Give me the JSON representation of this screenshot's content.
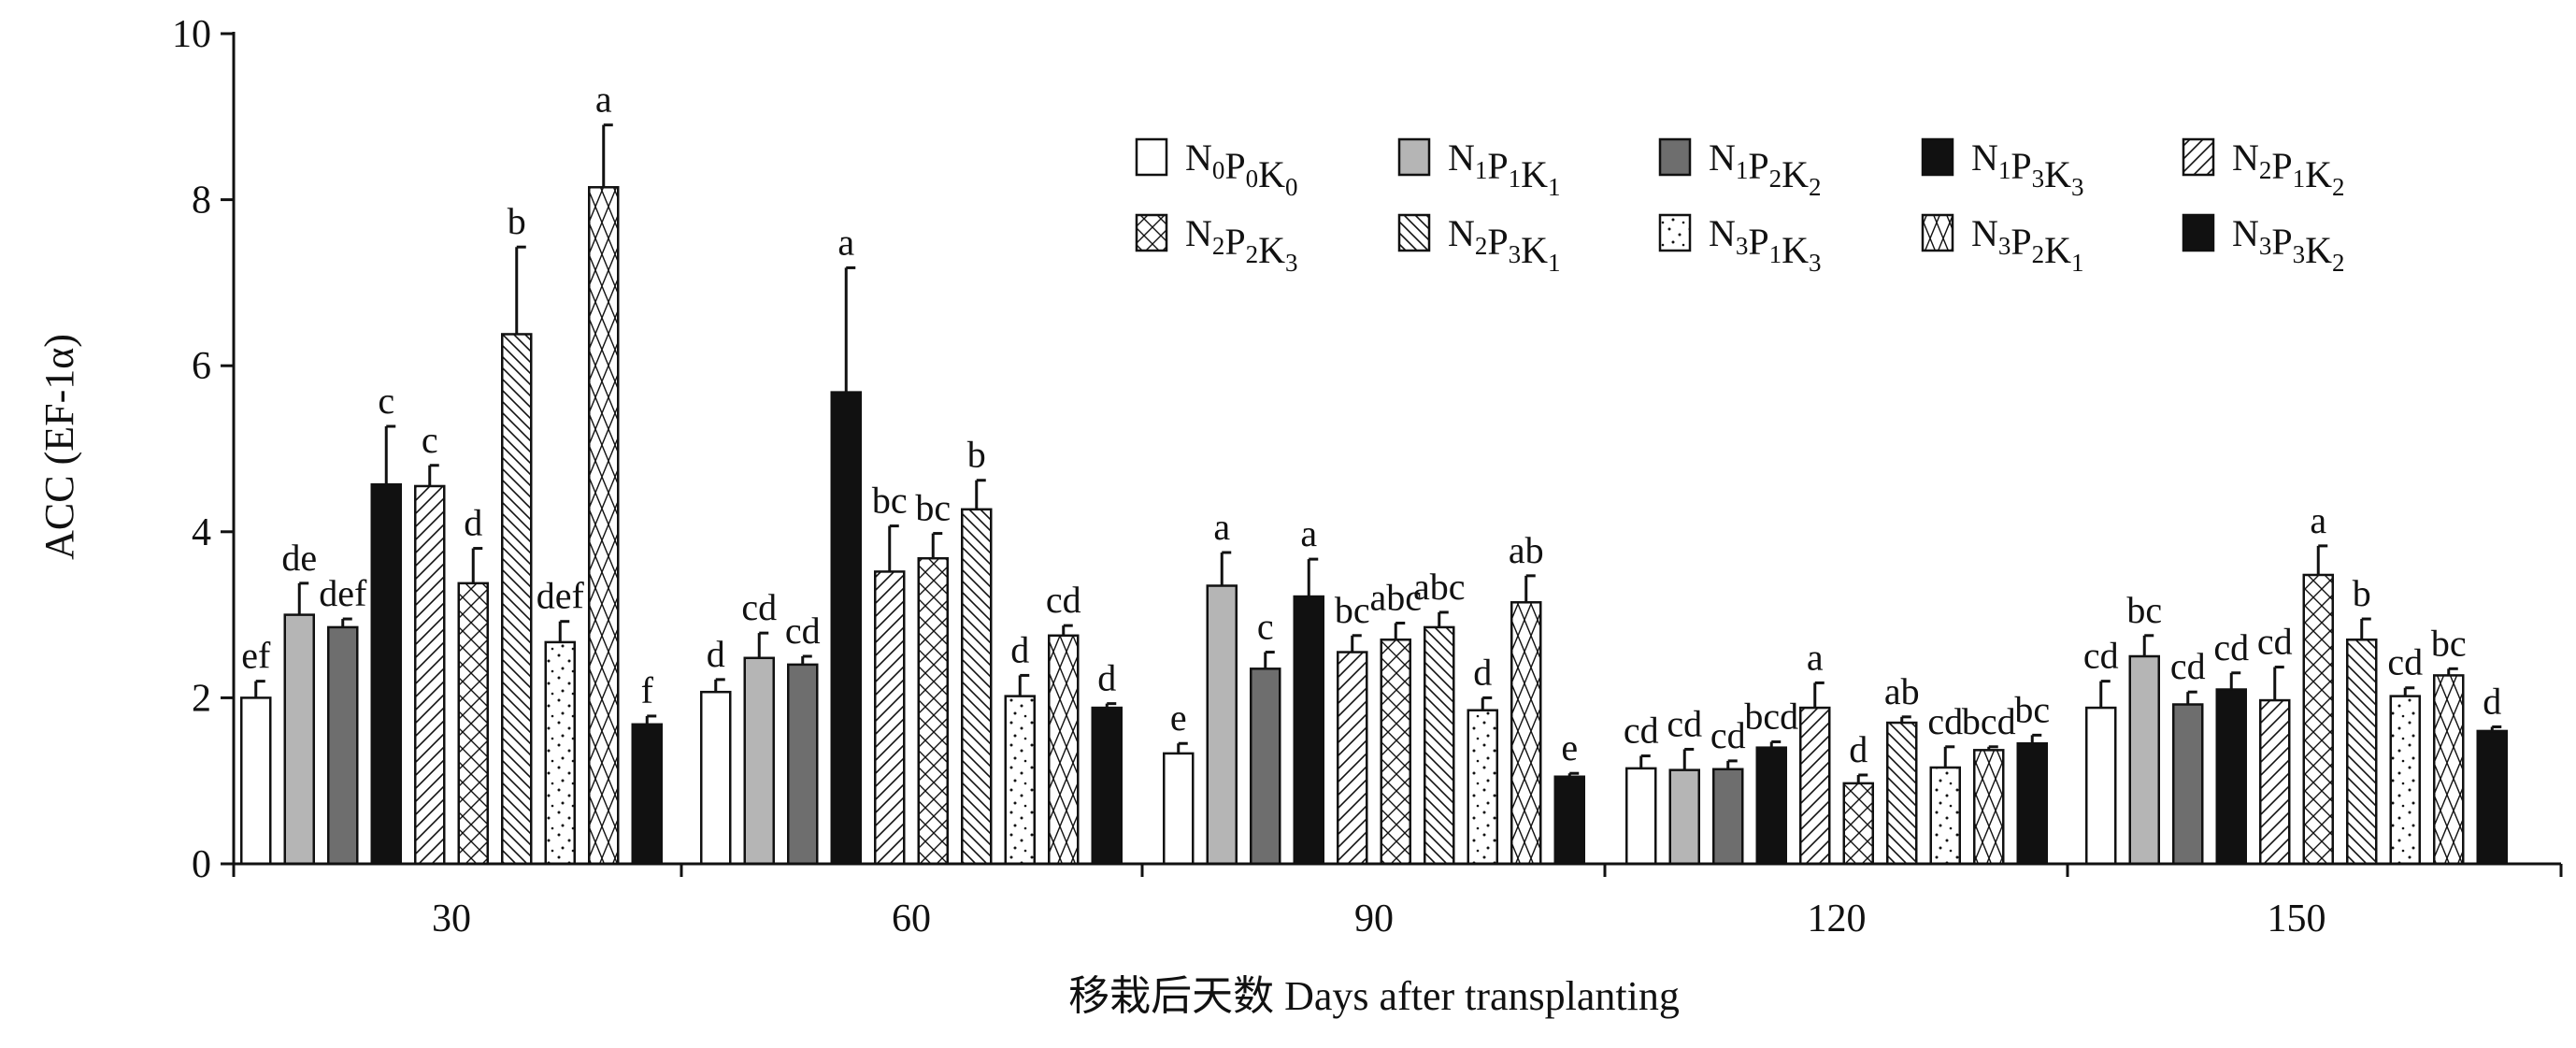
{
  "chart_data": {
    "type": "bar",
    "title": "",
    "ylabel": "ACC (EF-1α)",
    "xlabel": "移栽后天数 Days after transplanting",
    "ylim": [
      0,
      10
    ],
    "yticks": [
      "0",
      "2",
      "4",
      "6",
      "8",
      "10"
    ],
    "categories": [
      "30",
      "60",
      "90",
      "120",
      "150"
    ],
    "legend_placement": "top-right",
    "error_bars": true,
    "series": [
      {
        "name": "N0P0K0",
        "label_parts": [
          [
            "N",
            "0"
          ],
          [
            "P",
            "0"
          ],
          [
            "K",
            "0"
          ]
        ],
        "fill": "#ffffff",
        "pattern": "none",
        "values": [
          2.0,
          2.07,
          1.33,
          1.15,
          1.88
        ],
        "errors": [
          0.2,
          0.15,
          0.12,
          0.15,
          0.32
        ],
        "letters": [
          "ef",
          "d",
          "e",
          "cd",
          "cd"
        ]
      },
      {
        "name": "N1P1K1",
        "label_parts": [
          [
            "N",
            "1"
          ],
          [
            "P",
            "1"
          ],
          [
            "K",
            "1"
          ]
        ],
        "fill": "#b5b5b5",
        "pattern": "none",
        "values": [
          3.0,
          2.48,
          3.35,
          1.13,
          2.5
        ],
        "errors": [
          0.38,
          0.3,
          0.4,
          0.25,
          0.25
        ],
        "letters": [
          "de",
          "cd",
          "a",
          "cd",
          "bc"
        ]
      },
      {
        "name": "N1P2K2",
        "label_parts": [
          [
            "N",
            "1"
          ],
          [
            "P",
            "2"
          ],
          [
            "K",
            "2"
          ]
        ],
        "fill": "#6e6e6e",
        "pattern": "none",
        "values": [
          2.85,
          2.4,
          2.35,
          1.14,
          1.92
        ],
        "errors": [
          0.1,
          0.1,
          0.2,
          0.1,
          0.15
        ],
        "letters": [
          "def",
          "cd",
          "c",
          "cd",
          "cd"
        ]
      },
      {
        "name": "N1P3K3",
        "label_parts": [
          [
            "N",
            "1"
          ],
          [
            "P",
            "3"
          ],
          [
            "K",
            "3"
          ]
        ],
        "fill": "#111111",
        "pattern": "none",
        "values": [
          4.57,
          5.68,
          3.22,
          1.4,
          2.1
        ],
        "errors": [
          0.7,
          1.5,
          0.45,
          0.07,
          0.2
        ],
        "letters": [
          "c",
          "a",
          "a",
          "bcd",
          "cd"
        ]
      },
      {
        "name": "N2P1K2",
        "label_parts": [
          [
            "N",
            "2"
          ],
          [
            "P",
            "1"
          ],
          [
            "K",
            "2"
          ]
        ],
        "fill": "#ffffff",
        "pattern": "diag-fwd",
        "values": [
          4.55,
          3.52,
          2.55,
          1.88,
          1.97
        ],
        "errors": [
          0.25,
          0.55,
          0.2,
          0.3,
          0.4
        ],
        "letters": [
          "c",
          "bc",
          "bc",
          "a",
          "cd"
        ]
      },
      {
        "name": "N2P2K3",
        "label_parts": [
          [
            "N",
            "2"
          ],
          [
            "P",
            "2"
          ],
          [
            "K",
            "3"
          ]
        ],
        "fill": "#ffffff",
        "pattern": "cross",
        "values": [
          3.38,
          3.68,
          2.7,
          0.97,
          3.48
        ],
        "errors": [
          0.42,
          0.3,
          0.2,
          0.1,
          0.35
        ],
        "letters": [
          "d",
          "bc",
          "abc",
          "d",
          "a"
        ]
      },
      {
        "name": "N2P3K1",
        "label_parts": [
          [
            "N",
            "2"
          ],
          [
            "P",
            "3"
          ],
          [
            "K",
            "1"
          ]
        ],
        "fill": "#ffffff",
        "pattern": "diag-back",
        "values": [
          6.38,
          4.27,
          2.85,
          1.7,
          2.7
        ],
        "errors": [
          1.05,
          0.35,
          0.18,
          0.07,
          0.25
        ],
        "letters": [
          "b",
          "b",
          "abc",
          "ab",
          "b"
        ]
      },
      {
        "name": "N3P1K3",
        "label_parts": [
          [
            "N",
            "3"
          ],
          [
            "P",
            "1"
          ],
          [
            "K",
            "3"
          ]
        ],
        "fill": "#ffffff",
        "pattern": "dots",
        "values": [
          2.67,
          2.02,
          1.85,
          1.16,
          2.02
        ],
        "errors": [
          0.25,
          0.25,
          0.15,
          0.25,
          0.1
        ],
        "letters": [
          "def",
          "d",
          "d",
          "cd",
          "cd"
        ]
      },
      {
        "name": "N3P2K1",
        "label_parts": [
          [
            "N",
            "3"
          ],
          [
            "P",
            "2"
          ],
          [
            "K",
            "1"
          ]
        ],
        "fill": "#ffffff",
        "pattern": "cross-steep",
        "values": [
          8.15,
          2.75,
          3.15,
          1.37,
          2.27
        ],
        "errors": [
          0.75,
          0.12,
          0.32,
          0.04,
          0.08
        ],
        "letters": [
          "a",
          "cd",
          "ab",
          "bcd",
          "bc"
        ]
      },
      {
        "name": "N3P3K2",
        "label_parts": [
          [
            "N",
            "3"
          ],
          [
            "P",
            "3"
          ],
          [
            "K",
            "2"
          ]
        ],
        "fill": "#111111",
        "pattern": "none",
        "values": [
          1.68,
          1.88,
          1.05,
          1.45,
          1.6
        ],
        "errors": [
          0.1,
          0.05,
          0.04,
          0.1,
          0.05
        ],
        "letters": [
          "f",
          "d",
          "e",
          "bc",
          "d"
        ]
      }
    ]
  }
}
